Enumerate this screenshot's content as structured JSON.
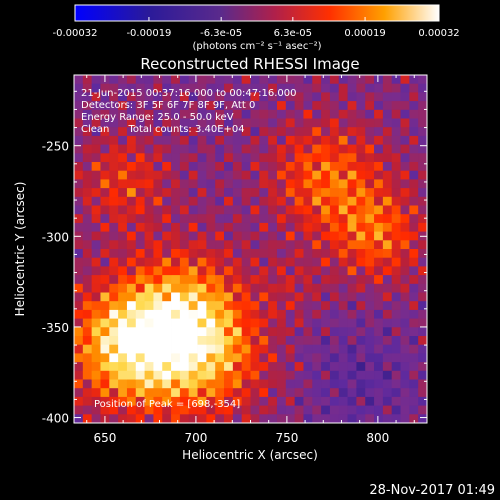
{
  "chart_data": {
    "type": "heatmap",
    "title": "Reconstructed RHESSI Image",
    "xlabel": "Heliocentric X (arcsec)",
    "ylabel": "Heliocentric Y (arcsec)",
    "xlim": [
      633,
      827
    ],
    "ylim": [
      -403,
      -211
    ],
    "x_ticks": [
      "650",
      "700",
      "750",
      "800"
    ],
    "y_ticks": [
      "-250",
      "-300",
      "-350",
      "-400"
    ],
    "x_tick_values": [
      650,
      700,
      750,
      800
    ],
    "y_tick_values": [
      -250,
      -300,
      -350,
      -400
    ],
    "colorbar": {
      "range": [
        -0.00032,
        0.00032
      ],
      "tick_labels": [
        "-0.00032",
        "-0.00019",
        "-6.3e-05",
        "6.3e-05",
        "0.00019",
        "0.00032"
      ],
      "unit_label": "(photons cm⁻² s⁻¹ asec⁻²)"
    },
    "annotations": [
      "21-Jun-2015 00:37:16.000 to 00:47:16.000",
      "Detectors: 3F 5F 6F 7F 8F 9F, Att 0",
      "Energy Range: 25.0 - 50.0 keV",
      "Clean      Total counts: 3.40E+04"
    ],
    "peak_label": "Position of Peak = [698,-354]",
    "peak": [
      698,
      -354
    ],
    "colormap": [
      "#0000ff",
      "#3a1e8a",
      "#5e2a9e",
      "#7a2c8c",
      "#b8203a",
      "#ff2a00",
      "#ff8c00",
      "#ffd84a",
      "#ffffff"
    ]
  },
  "footer": {
    "timestamp": "28-Nov-2017 01:49"
  }
}
